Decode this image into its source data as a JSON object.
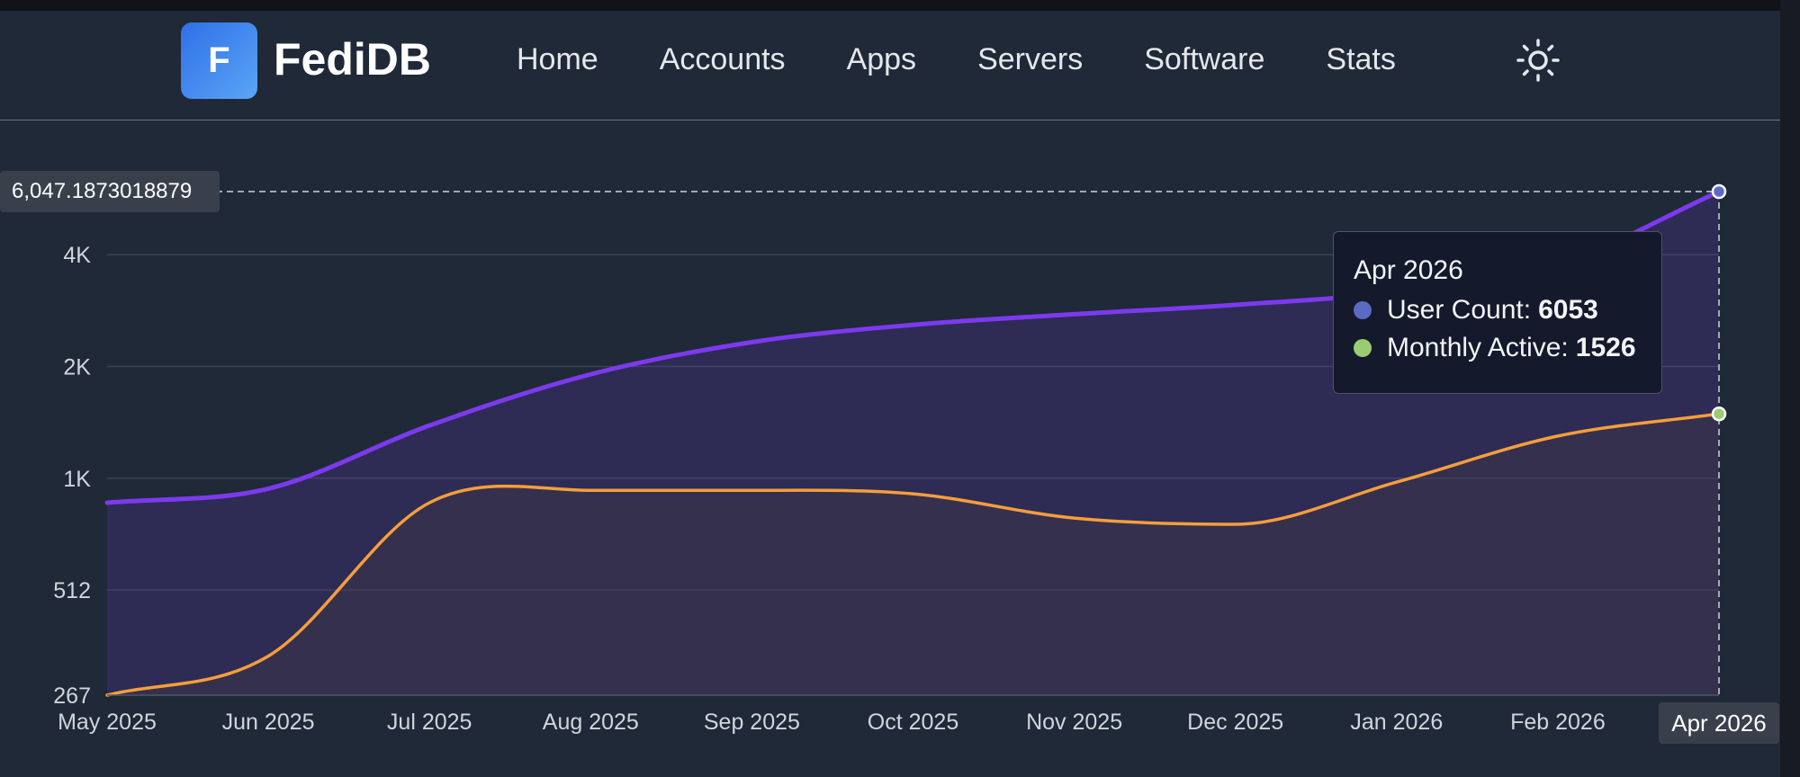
{
  "app": {
    "logo_letter": "F",
    "brand": "FediDB",
    "nav": [
      "Home",
      "Accounts",
      "Apps",
      "Servers",
      "Software",
      "Stats"
    ],
    "theme_icon": "sun-icon"
  },
  "colors": {
    "user_count": "#7c3aed",
    "monthly_active": "#f59e3b",
    "tooltip_user_dot": "#5b6ac4",
    "tooltip_active_dot": "#9bcb72"
  },
  "crosshair": {
    "y_label": "6,047.1873018879",
    "x_label": "Apr 2026"
  },
  "tooltip": {
    "title": "Apr 2026",
    "rows": [
      {
        "label": "User Count:",
        "value": "6053"
      },
      {
        "label": "Monthly Active:",
        "value": "1526"
      }
    ]
  },
  "chart_data": {
    "type": "area",
    "scale": "log",
    "categories": [
      "May 2025",
      "Jun 2025",
      "Jul 2025",
      "Aug 2025",
      "Sep 2025",
      "Oct 2025",
      "Nov 2025",
      "Dec 2025",
      "Jan 2026",
      "Feb 2026",
      "Apr 2026"
    ],
    "y_ticks": [
      {
        "value": 267,
        "label": "267"
      },
      {
        "value": 512,
        "label": "512"
      },
      {
        "value": 1024,
        "label": "1K"
      },
      {
        "value": 2048,
        "label": "2K"
      },
      {
        "value": 4096,
        "label": "4K"
      }
    ],
    "ylim": [
      267,
      6053
    ],
    "grid": true,
    "series": [
      {
        "name": "User Count",
        "values": [
          880,
          960,
          1420,
          1950,
          2380,
          2650,
          2830,
          3000,
          3250,
          3850,
          6053
        ]
      },
      {
        "name": "Monthly Active",
        "values": [
          267,
          340,
          880,
          950,
          950,
          930,
          800,
          770,
          1000,
          1330,
          1526
        ]
      }
    ]
  }
}
